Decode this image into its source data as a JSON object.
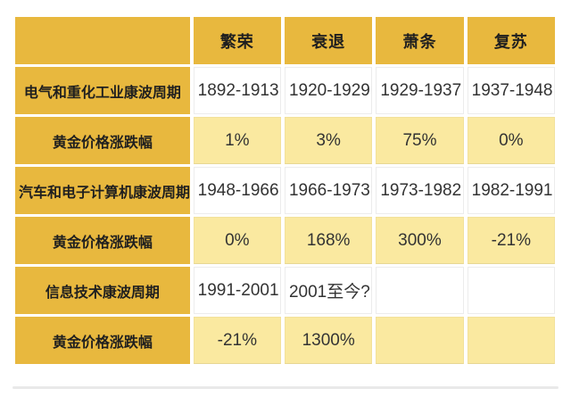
{
  "colors": {
    "gold": "#E8B83E",
    "light_yellow": "#FAE9A0",
    "cell_border": "#ececec",
    "label_text": "#1f1f1f",
    "data_text": "#333333"
  },
  "chart_data": {
    "type": "table",
    "title": "",
    "columns": [
      "",
      "繁荣",
      "衰退",
      "萧条",
      "复苏"
    ],
    "rows": [
      {
        "label": "电气和重化工业康波周期",
        "kind": "period",
        "values": [
          "1892-1913",
          "1920-1929",
          "1929-1937",
          "1937-1948"
        ]
      },
      {
        "label": "黄金价格涨跌幅",
        "kind": "gold_change",
        "values": [
          "1%",
          "3%",
          "75%",
          "0%"
        ]
      },
      {
        "label": "汽车和电子计算机康波周期",
        "kind": "period",
        "values": [
          "1948-1966",
          "1966-1973",
          "1973-1982",
          "1982-1991"
        ]
      },
      {
        "label": "黄金价格涨跌幅",
        "kind": "gold_change",
        "values": [
          "0%",
          "168%",
          "300%",
          "-21%"
        ]
      },
      {
        "label": "信息技术康波周期",
        "kind": "period",
        "values": [
          "1991-2001",
          "2001至今?",
          "",
          ""
        ]
      },
      {
        "label": "黄金价格涨跌幅",
        "kind": "gold_change",
        "values": [
          "-21%",
          "1300%",
          "",
          ""
        ]
      }
    ]
  }
}
